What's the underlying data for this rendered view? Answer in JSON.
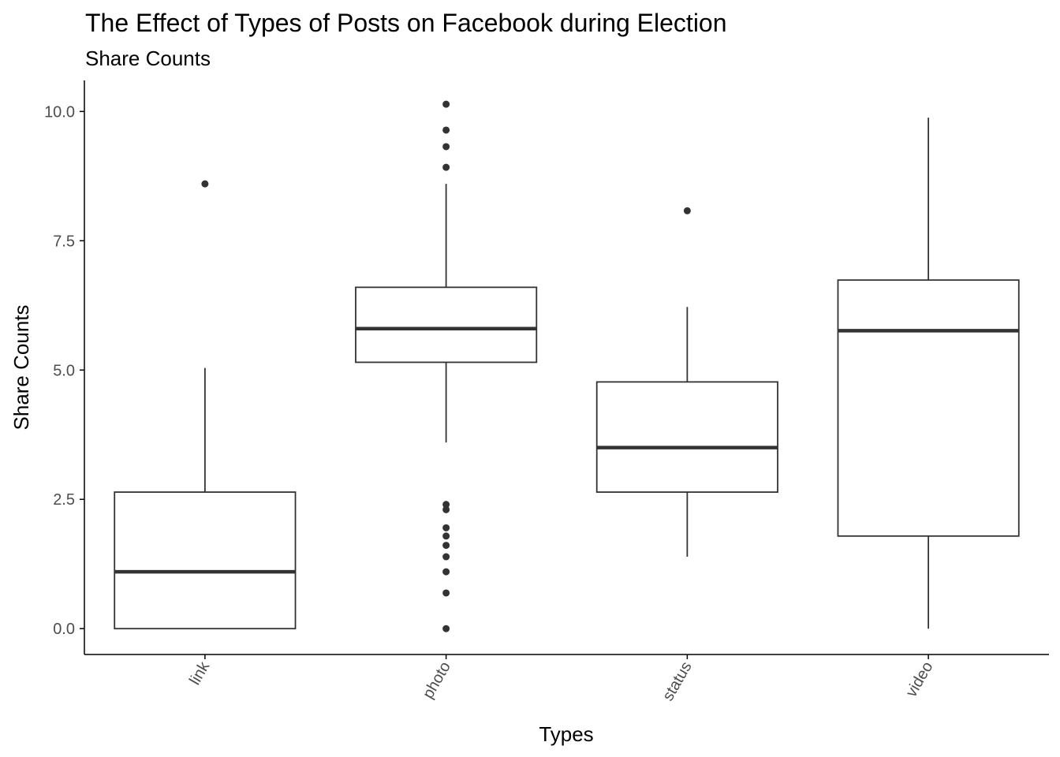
{
  "chart_data": {
    "type": "box",
    "title": "The Effect of Types of Posts on Facebook during Election",
    "subtitle": "Share Counts",
    "xlabel": "Types",
    "ylabel": "Share Counts",
    "ylim": [
      -0.5,
      10.6
    ],
    "yticks": [
      0.0,
      2.5,
      5.0,
      7.5,
      10.0
    ],
    "ytick_labels": [
      "0.0",
      "2.5",
      "5.0",
      "7.5",
      "10.0"
    ],
    "categories": [
      "link",
      "photo",
      "status",
      "video"
    ],
    "boxes": [
      {
        "category": "link",
        "min": 0.0,
        "q1": 0.0,
        "median": 1.1,
        "q3": 2.64,
        "max": 5.04,
        "outliers": [
          8.6
        ]
      },
      {
        "category": "photo",
        "min": 3.6,
        "q1": 5.15,
        "median": 5.8,
        "q3": 6.6,
        "max": 8.6,
        "outliers": [
          0.0,
          0.69,
          1.1,
          1.39,
          1.61,
          1.79,
          1.95,
          2.3,
          2.4,
          8.92,
          9.32,
          9.64,
          10.14
        ]
      },
      {
        "category": "status",
        "min": 1.39,
        "q1": 2.64,
        "median": 3.5,
        "q3": 4.77,
        "max": 6.22,
        "outliers": [
          8.08
        ]
      },
      {
        "category": "video",
        "min": 0.0,
        "q1": 1.79,
        "median": 5.76,
        "q3": 6.74,
        "max": 9.88,
        "outliers": []
      }
    ],
    "grid": false,
    "legend": "none",
    "colors": {
      "box_line": "#333333",
      "point": "#333333",
      "axis": "#000000"
    }
  }
}
